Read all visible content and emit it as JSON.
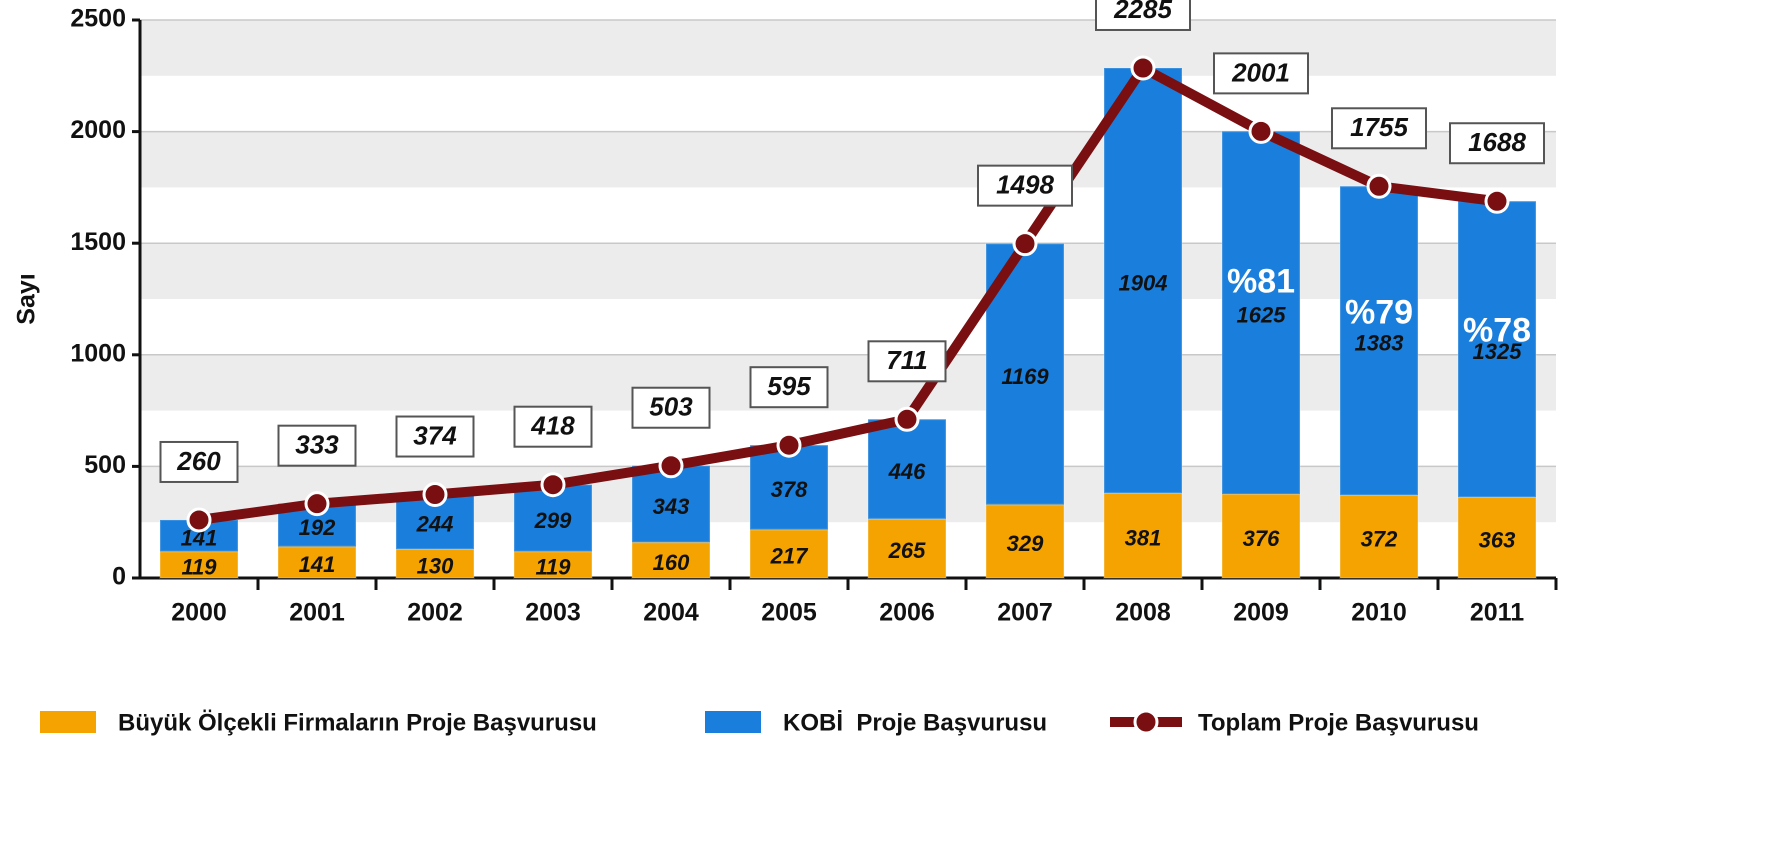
{
  "chart_data": {
    "type": "bar",
    "stacked": true,
    "ylabel": "Sayı",
    "categories": [
      "2000",
      "2001",
      "2002",
      "2003",
      "2004",
      "2005",
      "2006",
      "2007",
      "2008",
      "2009",
      "2010",
      "2011"
    ],
    "series": [
      {
        "name": "Büyük Ölçekli Firmaların Proje Başvurusu",
        "type": "bar",
        "color": "#f4a300",
        "values": [
          119,
          141,
          130,
          119,
          160,
          217,
          265,
          329,
          381,
          376,
          372,
          363
        ]
      },
      {
        "name": "KOBİ  Proje Başvurusu",
        "type": "bar",
        "color": "#1a7fdc",
        "values": [
          141,
          192,
          244,
          299,
          343,
          378,
          446,
          1169,
          1904,
          1625,
          1383,
          1325
        ]
      },
      {
        "name": "Toplam Proje Başvurusu",
        "type": "line",
        "color": "#7a0f12",
        "values": [
          260,
          333,
          374,
          418,
          503,
          595,
          711,
          1498,
          2285,
          2001,
          1755,
          1688
        ]
      }
    ],
    "annotations": [
      {
        "text": "%81",
        "x": "2009"
      },
      {
        "text": "%79",
        "x": "2010"
      },
      {
        "text": "%78",
        "x": "2011"
      }
    ],
    "ylim": [
      0,
      2500
    ],
    "yticks": [
      0,
      500,
      1000,
      1500,
      2000,
      2500
    ],
    "grid": true
  }
}
